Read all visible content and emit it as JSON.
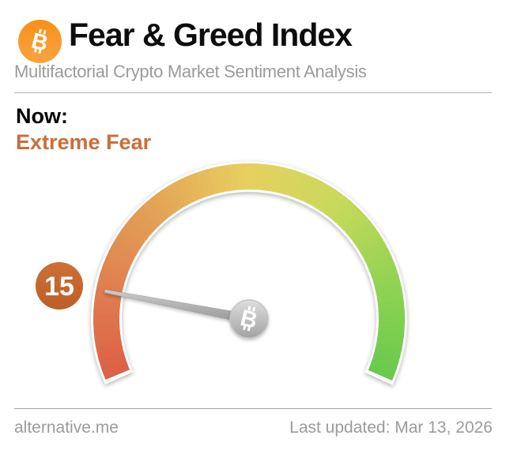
{
  "header": {
    "title": "Fear & Greed Index",
    "subtitle": "Multifactorial Crypto Market Sentiment Analysis"
  },
  "status": {
    "label": "Now:",
    "sentiment": "Extreme Fear",
    "value": "15"
  },
  "chart_data": {
    "type": "gauge",
    "value": 15,
    "min": 0,
    "max": 100,
    "sentiment_label": "Extreme Fear",
    "scale_colors": [
      "#dc5f45",
      "#e0804f",
      "#e3a556",
      "#e7d05f",
      "#c8d95b",
      "#93d254",
      "#68ca4b"
    ],
    "arc_start_deg": 203,
    "arc_end_deg": -23.3
  },
  "icons": {
    "bitcoin_b": "B"
  },
  "colors": {
    "sentiment_orange": "#c96e38",
    "badge_orange": "#c56a30",
    "bitcoin_orange": "#f7931a",
    "needle_gray": "#a8a8a8",
    "text_gray": "#9b9b9b"
  },
  "footer": {
    "site": "alternative.me",
    "last_updated": "Last updated: Mar 13, 2026"
  }
}
